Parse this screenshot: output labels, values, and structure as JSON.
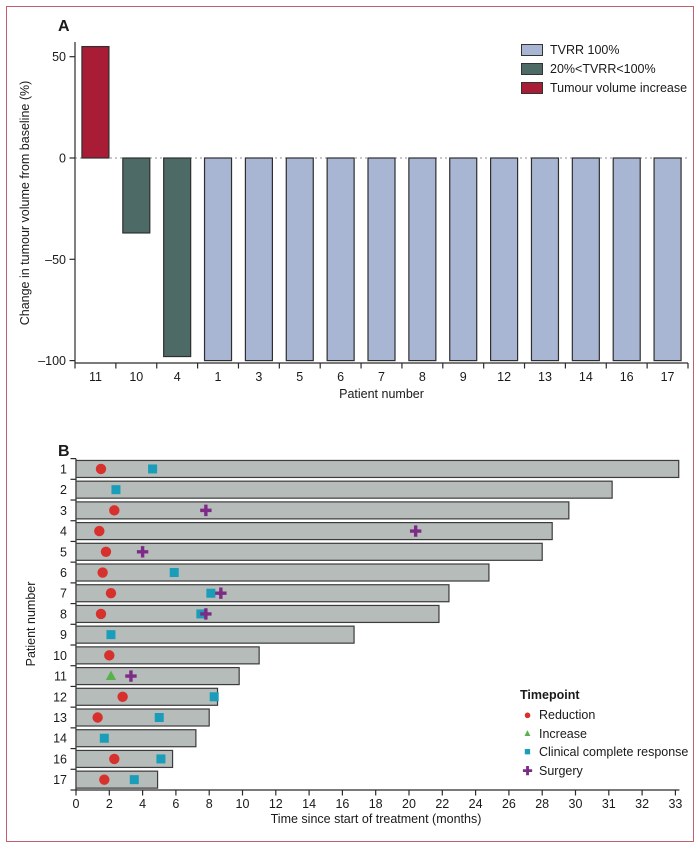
{
  "figure": {
    "border_color": "#c4606e",
    "text_color": "#1a1a1a"
  },
  "chart_data": [
    {
      "type": "bar",
      "panel_label": "A",
      "ylabel": "Change in tumour volume from baseline (%)",
      "xlabel": "Patient number",
      "categories": [
        "11",
        "10",
        "4",
        "1",
        "3",
        "5",
        "6",
        "7",
        "8",
        "9",
        "12",
        "13",
        "14",
        "16",
        "17"
      ],
      "values": [
        55,
        -37,
        -98,
        -100,
        -100,
        -100,
        -100,
        -100,
        -100,
        -100,
        -100,
        -100,
        -100,
        -100,
        -100
      ],
      "groups": [
        "increase",
        "partial",
        "partial",
        "full",
        "full",
        "full",
        "full",
        "full",
        "full",
        "full",
        "full",
        "full",
        "full",
        "full",
        "full"
      ],
      "colors": {
        "full": "#a9b6d3",
        "partial": "#4e6a66",
        "increase": "#a81d35"
      },
      "y_ticks": [
        {
          "v": 50,
          "label": "50"
        },
        {
          "v": 0,
          "label": "0"
        },
        {
          "v": -50,
          "label": "–50"
        },
        {
          "v": -100,
          "label": "–100"
        }
      ],
      "ylim": [
        -101,
        57
      ],
      "zero_line": "dashed",
      "grid": "off",
      "legend_position": "top-right",
      "legend": [
        {
          "key": "full",
          "label": "TVRR 100%"
        },
        {
          "key": "partial",
          "label": "20%<TVRR<100%"
        },
        {
          "key": "increase",
          "label": "Tumour volume increase"
        }
      ]
    },
    {
      "type": "bar",
      "orientation": "horizontal",
      "panel_label": "B",
      "xlabel": "Time since start of treatment (months)",
      "ylabel": "Patient number",
      "x_tick_values": [
        0,
        2,
        4,
        6,
        8,
        10,
        12,
        14,
        16,
        18,
        20,
        22,
        24,
        26,
        28,
        30,
        31,
        32,
        33
      ],
      "x_scale_note": "ticks evenly spaced: 2-month steps to 30, then 1-month steps 31-33",
      "bar_color": "#b6bcba",
      "bars": [
        {
          "patient": "1",
          "duration_months": 33.1,
          "events": [
            {
              "type": "reduction",
              "month": 1.5
            },
            {
              "type": "clinical_complete_response",
              "month": 4.6
            }
          ]
        },
        {
          "patient": "2",
          "duration_months": 31.1,
          "events": [
            {
              "type": "clinical_complete_response",
              "month": 2.4
            }
          ]
        },
        {
          "patient": "3",
          "duration_months": 29.6,
          "events": [
            {
              "type": "reduction",
              "month": 2.3
            },
            {
              "type": "surgery",
              "month": 7.8
            }
          ]
        },
        {
          "patient": "4",
          "duration_months": 28.6,
          "events": [
            {
              "type": "reduction",
              "month": 1.4
            },
            {
              "type": "surgery",
              "month": 20.4
            }
          ]
        },
        {
          "patient": "5",
          "duration_months": 28.0,
          "events": [
            {
              "type": "reduction",
              "month": 1.8
            },
            {
              "type": "surgery",
              "month": 4.0
            }
          ]
        },
        {
          "patient": "6",
          "duration_months": 24.8,
          "events": [
            {
              "type": "reduction",
              "month": 1.6
            },
            {
              "type": "clinical_complete_response",
              "month": 5.9
            }
          ]
        },
        {
          "patient": "7",
          "duration_months": 22.4,
          "events": [
            {
              "type": "reduction",
              "month": 2.1
            },
            {
              "type": "clinical_complete_response",
              "month": 8.1
            },
            {
              "type": "surgery",
              "month": 8.7
            }
          ]
        },
        {
          "patient": "8",
          "duration_months": 21.8,
          "events": [
            {
              "type": "reduction",
              "month": 1.5
            },
            {
              "type": "clinical_complete_response",
              "month": 7.5
            },
            {
              "type": "surgery",
              "month": 7.8
            }
          ]
        },
        {
          "patient": "9",
          "duration_months": 16.7,
          "events": [
            {
              "type": "clinical_complete_response",
              "month": 2.1
            }
          ]
        },
        {
          "patient": "10",
          "duration_months": 11.0,
          "events": [
            {
              "type": "reduction",
              "month": 2.0
            }
          ]
        },
        {
          "patient": "11",
          "duration_months": 9.8,
          "events": [
            {
              "type": "increase",
              "month": 2.1
            },
            {
              "type": "surgery",
              "month": 3.3
            }
          ]
        },
        {
          "patient": "12",
          "duration_months": 8.5,
          "events": [
            {
              "type": "reduction",
              "month": 2.8
            },
            {
              "type": "clinical_complete_response",
              "month": 8.3
            }
          ]
        },
        {
          "patient": "13",
          "duration_months": 8.0,
          "events": [
            {
              "type": "reduction",
              "month": 1.3
            },
            {
              "type": "clinical_complete_response",
              "month": 5.0
            }
          ]
        },
        {
          "patient": "14",
          "duration_months": 7.2,
          "events": [
            {
              "type": "clinical_complete_response",
              "month": 1.7
            }
          ]
        },
        {
          "patient": "16",
          "duration_months": 5.8,
          "events": [
            {
              "type": "reduction",
              "month": 2.3
            },
            {
              "type": "clinical_complete_response",
              "month": 5.1
            }
          ]
        },
        {
          "patient": "17",
          "duration_months": 4.9,
          "events": [
            {
              "type": "reduction",
              "month": 1.7
            },
            {
              "type": "clinical_complete_response",
              "month": 3.5
            }
          ]
        }
      ],
      "marker_colors": {
        "reduction": "#d7312e",
        "increase": "#58b24c",
        "clinical_complete_response": "#199db9",
        "surgery": "#7c2c86"
      },
      "legend": {
        "title": "Timepoint",
        "items": [
          {
            "type": "reduction",
            "label": "Reduction",
            "shape": "circle"
          },
          {
            "type": "increase",
            "label": "Increase",
            "shape": "triangle"
          },
          {
            "type": "clinical_complete_response",
            "label": "Clinical complete response",
            "shape": "square"
          },
          {
            "type": "surgery",
            "label": "Surgery",
            "shape": "plus"
          }
        ]
      }
    }
  ]
}
